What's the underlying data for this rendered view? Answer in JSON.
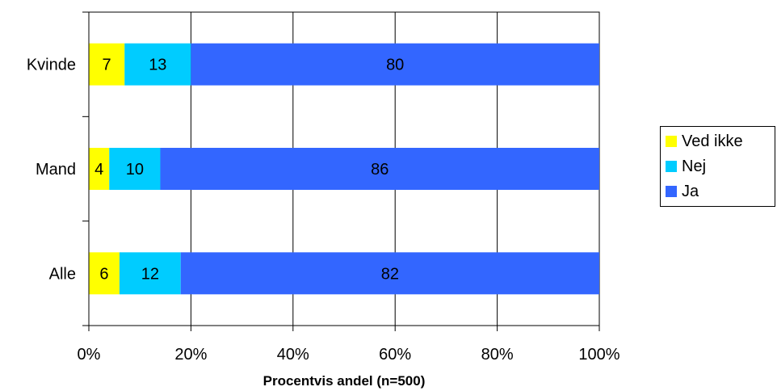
{
  "chart_data": {
    "type": "bar",
    "orientation": "horizontal",
    "stacked": true,
    "percent": true,
    "categories": [
      "Kvinde",
      "Mand",
      "Alle"
    ],
    "series": [
      {
        "name": "Ved ikke",
        "values": [
          7,
          4,
          6
        ],
        "color": "#FFFF00"
      },
      {
        "name": "Nej",
        "values": [
          13,
          10,
          12
        ],
        "color": "#00CCFF"
      },
      {
        "name": "Ja",
        "values": [
          80,
          86,
          82
        ],
        "color": "#3366FF"
      }
    ],
    "xlabel": "Procentvis andel (n=500)",
    "ylabel": "",
    "xlim": [
      0,
      100
    ],
    "xticks": [
      "0%",
      "20%",
      "40%",
      "60%",
      "80%",
      "100%"
    ],
    "grid": true,
    "legend": "right"
  }
}
